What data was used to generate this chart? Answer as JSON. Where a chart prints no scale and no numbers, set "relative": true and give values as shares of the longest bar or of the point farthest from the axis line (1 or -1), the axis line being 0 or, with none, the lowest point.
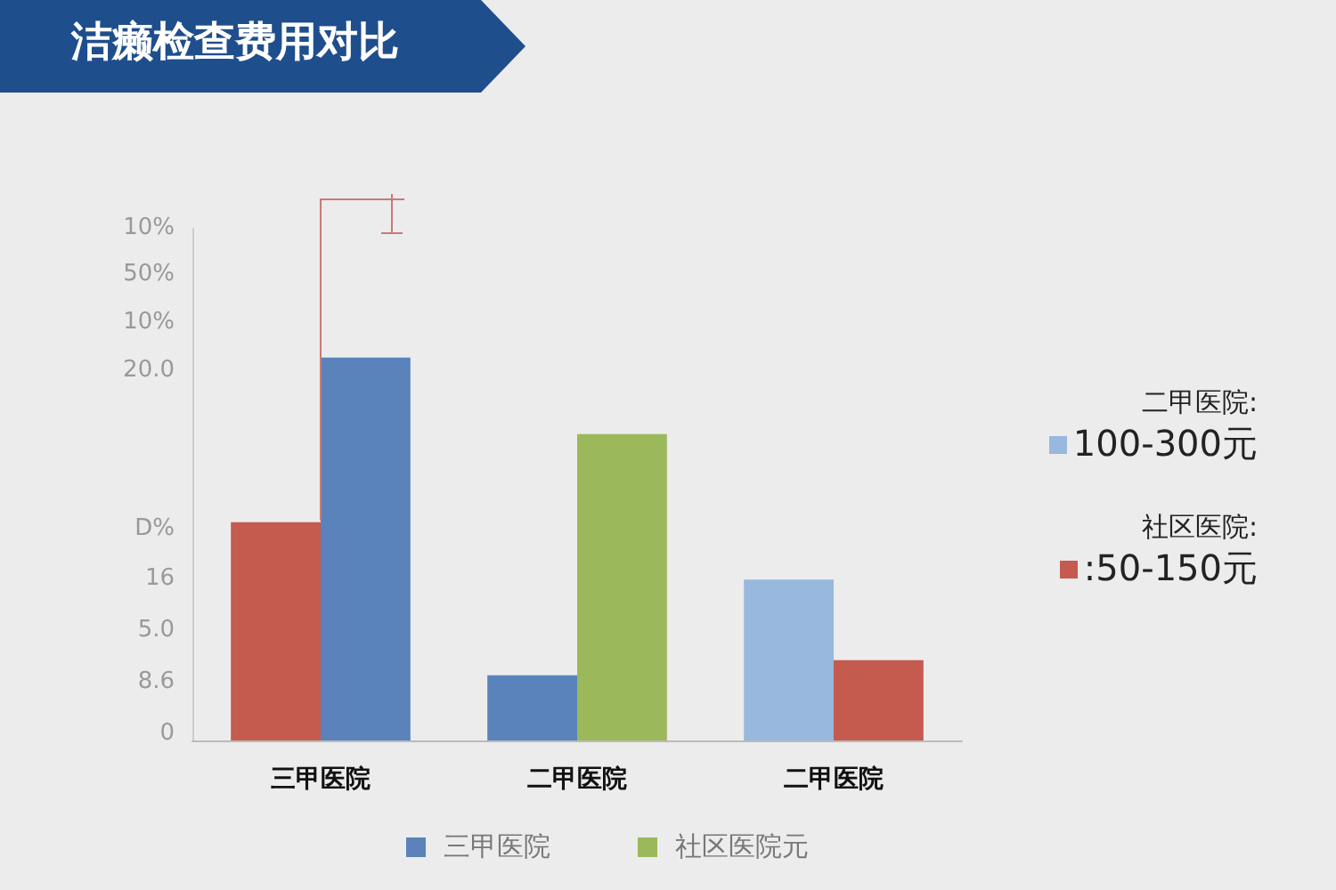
{
  "chart_data": {
    "type": "bar",
    "title": "洁癞检查费用对比",
    "relative": true,
    "categories": [
      "三甲医院",
      "二甲医院",
      "二甲医院"
    ],
    "series": [
      {
        "colors": [
          "#c55a4e",
          "#5a82bb",
          "#98b8de"
        ],
        "values": [
          0.57,
          0.17,
          0.42
        ]
      },
      {
        "colors": [
          "#5a82bb",
          "#9bb85a",
          "#c55a4e"
        ],
        "values": [
          1,
          0.8,
          0.21
        ]
      }
    ],
    "annotations": [
      "10%",
      "50%",
      "10%",
      "20.0",
      "D%",
      "16",
      "5.0",
      "8.6",
      "0",
      "三甲医院",
      "社区医院元",
      "二甲医院:",
      "100-300元",
      "社区医院:",
      ":50-150元"
    ]
  }
}
